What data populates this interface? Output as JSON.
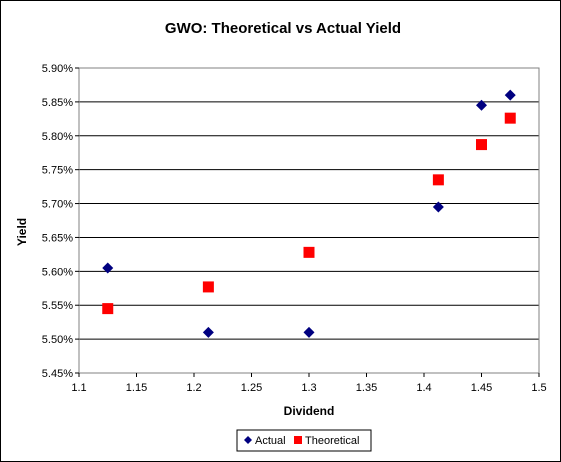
{
  "chart_data": {
    "type": "scatter",
    "title": "GWO: Theoretical vs Actual Yield",
    "xlabel": "Dividend",
    "ylabel": "Yield",
    "xlim": [
      1.1,
      1.5
    ],
    "ylim": [
      0.0545,
      0.059
    ],
    "x_ticks": [
      "1.1",
      "1.15",
      "1.2",
      "1.25",
      "1.3",
      "1.35",
      "1.4",
      "1.45",
      "1.5"
    ],
    "y_ticks": [
      "5.45%",
      "5.50%",
      "5.55%",
      "5.60%",
      "5.65%",
      "5.70%",
      "5.75%",
      "5.80%",
      "5.85%",
      "5.90%"
    ],
    "grid": "horizontal",
    "legend_position": "bottom",
    "series": [
      {
        "name": "Actual",
        "marker": "diamond",
        "color": "#000080",
        "points": [
          {
            "x": 1.125,
            "y": 0.05605
          },
          {
            "x": 1.2125,
            "y": 0.0551
          },
          {
            "x": 1.3,
            "y": 0.0551
          },
          {
            "x": 1.4125,
            "y": 0.05695
          },
          {
            "x": 1.45,
            "y": 0.05845
          },
          {
            "x": 1.475,
            "y": 0.0586
          }
        ]
      },
      {
        "name": "Theoretical",
        "marker": "square",
        "color": "#ff0000",
        "points": [
          {
            "x": 1.125,
            "y": 0.05545
          },
          {
            "x": 1.2125,
            "y": 0.05577
          },
          {
            "x": 1.3,
            "y": 0.05628
          },
          {
            "x": 1.4125,
            "y": 0.05735
          },
          {
            "x": 1.45,
            "y": 0.05787
          },
          {
            "x": 1.475,
            "y": 0.05826
          }
        ]
      }
    ]
  }
}
